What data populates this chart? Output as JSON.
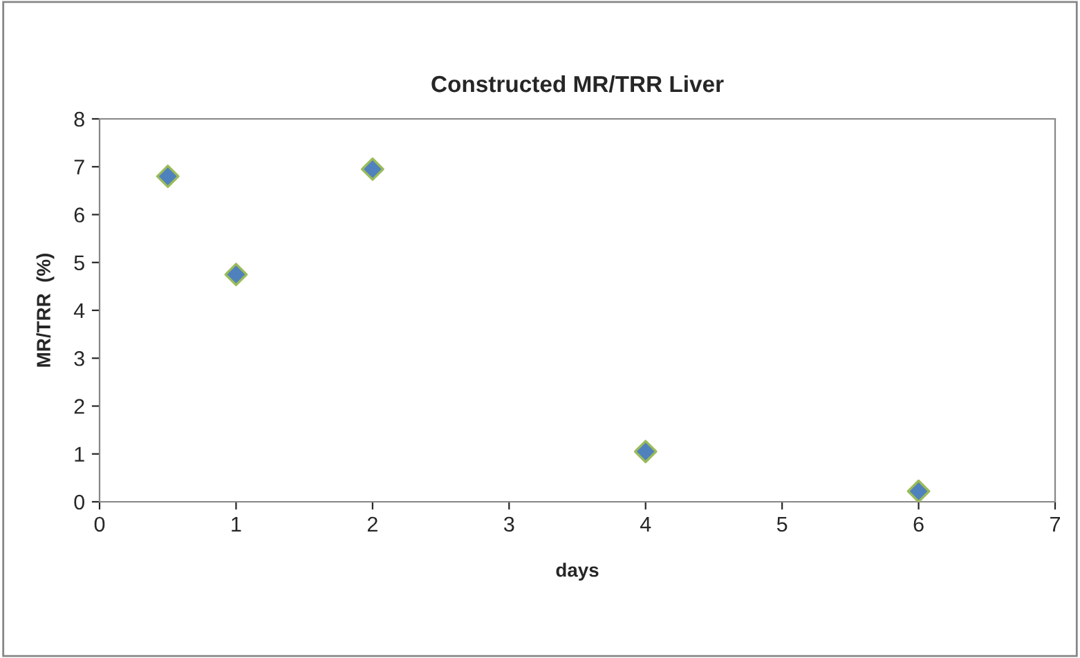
{
  "chart_data": {
    "type": "scatter",
    "title": "Constructed MR/TRR Liver",
    "xlabel": "days",
    "ylabel": "MR/TRR  (%)",
    "x": [
      0.5,
      1,
      2,
      4,
      6
    ],
    "values": [
      6.8,
      4.75,
      6.95,
      1.05,
      0.22
    ],
    "color": "#4f81bd",
    "marker": "diamond",
    "xlim": [
      0,
      7
    ],
    "xticks": [
      0,
      1,
      2,
      3,
      4,
      5,
      6,
      7
    ],
    "ylim": [
      0,
      8
    ],
    "yticks": [
      0,
      1,
      2,
      3,
      4,
      5,
      6,
      7,
      8
    ],
    "grid": false,
    "legend": false
  }
}
